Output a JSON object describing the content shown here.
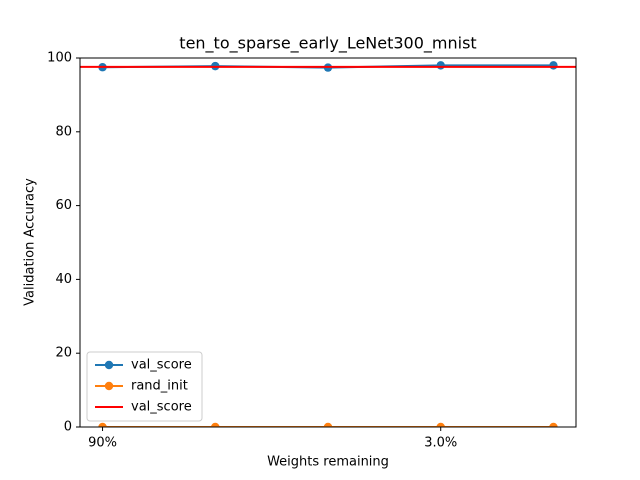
{
  "chart_data": {
    "type": "line",
    "title": "ten_to_sparse_early_LeNet300_mnist",
    "x_label": "Weights remaining",
    "y_label": "Validation Accuracy",
    "categories": [
      "90%",
      null,
      null,
      "3.0%",
      null
    ],
    "series": [
      {
        "name": "val_score",
        "color": "#1f77b4",
        "values": [
          97.5,
          97.8,
          97.4,
          98.0,
          98.0
        ]
      },
      {
        "name": "rand_init",
        "color": "#ff7f0e",
        "values": [
          0,
          0,
          0,
          0,
          0
        ]
      }
    ],
    "hlines": [
      {
        "name": "val_score",
        "color": "#ff0000",
        "value": 97.6
      }
    ],
    "ylim": [
      0,
      100
    ],
    "yticks": [
      0,
      20,
      40,
      60,
      80,
      100
    ],
    "legend": "lower left"
  }
}
